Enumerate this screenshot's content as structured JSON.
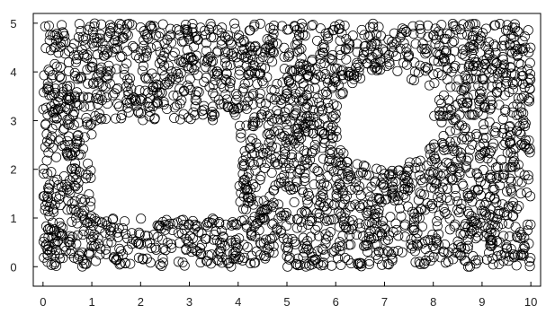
{
  "chart_data": {
    "type": "scatter",
    "title": "",
    "xlabel": "",
    "ylabel": "",
    "xlim": [
      -0.2,
      10.2
    ],
    "ylim": [
      -0.4,
      5.2
    ],
    "xticks": [
      "0",
      "1",
      "2",
      "3",
      "4",
      "5",
      "6",
      "7",
      "8",
      "9",
      "10"
    ],
    "yticks": [
      "0",
      "1",
      "2",
      "3",
      "4",
      "5"
    ],
    "grid": false,
    "legend": "none",
    "marker": "open-circle",
    "marker_color": "#000000",
    "domain": {
      "x": [
        0,
        10
      ],
      "y": [
        0,
        5
      ]
    },
    "point_count": 2600,
    "empty_regions": [
      {
        "shape": "rectangle",
        "x": [
          1.0,
          4.0
        ],
        "y": [
          1.0,
          3.0
        ]
      },
      {
        "shape": "circle",
        "center": [
          7.0,
          3.0
        ],
        "radius": 1.0
      }
    ]
  }
}
